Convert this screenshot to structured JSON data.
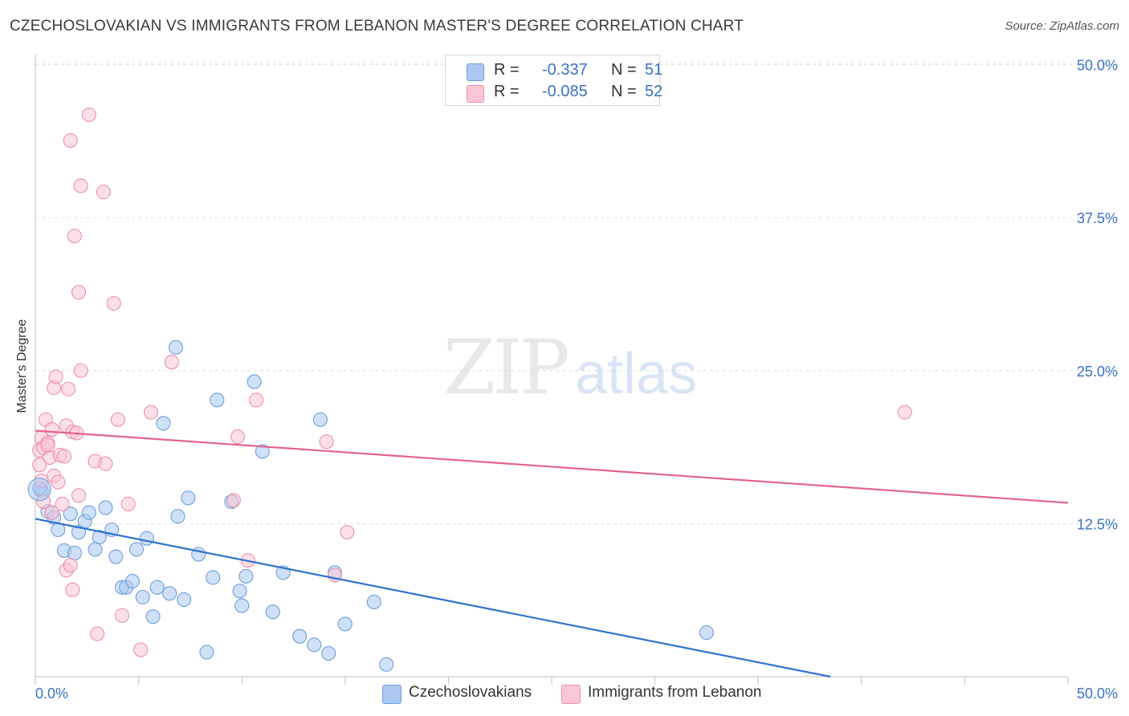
{
  "title": "CZECHOSLOVAKIAN VS IMMIGRANTS FROM LEBANON MASTER'S DEGREE CORRELATION CHART",
  "source": "Source: ZipAtlas.com",
  "watermark": {
    "zip": "ZIP",
    "atlas": "atlas"
  },
  "legend": {
    "r_label": "R =",
    "n_label": "N =",
    "rows": [
      {
        "r": "-0.337",
        "n": "51",
        "color": "#aac8f0",
        "stroke": "#6e9fdc"
      },
      {
        "r": "-0.085",
        "n": "52",
        "color": "#f9c6d6",
        "stroke": "#ec8fae"
      }
    ]
  },
  "bottom_legend": [
    {
      "label": "Czechoslovakians",
      "color": "#aac8f0",
      "stroke": "#6e9fdc"
    },
    {
      "label": "Immigrants from Lebanon",
      "color": "#f9c6d6",
      "stroke": "#ec8fae"
    }
  ],
  "chart_data": {
    "type": "scatter",
    "title": "CZECHOSLOVAKIAN VS IMMIGRANTS FROM LEBANON MASTER'S DEGREE CORRELATION CHART",
    "xlabel": "",
    "ylabel": "Master's Degree",
    "xlim": [
      0,
      50
    ],
    "ylim": [
      0,
      52
    ],
    "x_tick_labels": [
      "0.0%",
      "50.0%"
    ],
    "y_ticks": [
      12.5,
      25.0,
      37.5,
      50.0
    ],
    "y_tick_labels": [
      "12.5%",
      "25.0%",
      "37.5%",
      "50.0%"
    ],
    "grid": true,
    "series": [
      {
        "name": "Czechoslovakians",
        "color": "#6e9fdc",
        "fill": "#aac8f0",
        "line_color": "#2f72cf",
        "trend": {
          "x": [
            0,
            38.5
          ],
          "y": [
            12.9,
            0
          ]
        },
        "points": [
          [
            0.3,
            15.2
          ],
          [
            0.6,
            13.5
          ],
          [
            0.9,
            13.0
          ],
          [
            1.1,
            12.0
          ],
          [
            1.4,
            10.3
          ],
          [
            1.7,
            13.3
          ],
          [
            1.9,
            10.1
          ],
          [
            2.1,
            11.8
          ],
          [
            2.4,
            12.7
          ],
          [
            2.6,
            13.4
          ],
          [
            2.9,
            10.4
          ],
          [
            3.1,
            11.4
          ],
          [
            3.4,
            13.8
          ],
          [
            3.7,
            12.0
          ],
          [
            3.9,
            9.8
          ],
          [
            4.2,
            7.3
          ],
          [
            4.4,
            7.3
          ],
          [
            4.7,
            7.8
          ],
          [
            4.9,
            10.4
          ],
          [
            5.2,
            6.5
          ],
          [
            5.4,
            11.3
          ],
          [
            5.7,
            4.9
          ],
          [
            5.9,
            7.3
          ],
          [
            6.2,
            20.7
          ],
          [
            6.5,
            6.8
          ],
          [
            6.8,
            26.9
          ],
          [
            6.9,
            13.1
          ],
          [
            7.2,
            6.3
          ],
          [
            7.4,
            14.6
          ],
          [
            7.9,
            10.0
          ],
          [
            8.3,
            2.0
          ],
          [
            8.6,
            8.1
          ],
          [
            8.8,
            22.6
          ],
          [
            9.5,
            14.3
          ],
          [
            9.9,
            7.0
          ],
          [
            10.0,
            5.8
          ],
          [
            10.2,
            8.2
          ],
          [
            10.6,
            24.1
          ],
          [
            11.0,
            18.4
          ],
          [
            11.5,
            5.3
          ],
          [
            12.0,
            8.5
          ],
          [
            12.8,
            3.3
          ],
          [
            13.5,
            2.6
          ],
          [
            13.8,
            21.0
          ],
          [
            14.2,
            1.9
          ],
          [
            14.5,
            8.5
          ],
          [
            15.0,
            4.3
          ],
          [
            16.4,
            6.1
          ],
          [
            17.0,
            1.0
          ],
          [
            32.5,
            3.6
          ],
          [
            0.2,
            15.4
          ]
        ]
      },
      {
        "name": "Immigrants from Lebanon",
        "color": "#ec8fae",
        "fill": "#f9c6d6",
        "line_color": "#e3638f",
        "trend": {
          "x": [
            0,
            50
          ],
          "y": [
            20.1,
            14.2
          ]
        },
        "points": [
          [
            0.2,
            18.5
          ],
          [
            0.3,
            19.5
          ],
          [
            0.4,
            18.7
          ],
          [
            0.5,
            21.0
          ],
          [
            0.6,
            19.1
          ],
          [
            0.7,
            17.9
          ],
          [
            0.8,
            20.2
          ],
          [
            0.9,
            23.6
          ],
          [
            0.9,
            16.4
          ],
          [
            1.0,
            24.5
          ],
          [
            1.1,
            15.9
          ],
          [
            1.2,
            18.1
          ],
          [
            1.3,
            14.1
          ],
          [
            1.4,
            18.0
          ],
          [
            1.5,
            8.7
          ],
          [
            1.5,
            20.5
          ],
          [
            1.6,
            23.5
          ],
          [
            1.7,
            9.1
          ],
          [
            1.7,
            43.8
          ],
          [
            1.8,
            7.1
          ],
          [
            1.8,
            20.0
          ],
          [
            1.9,
            36.0
          ],
          [
            2.0,
            19.9
          ],
          [
            2.1,
            14.8
          ],
          [
            2.1,
            31.4
          ],
          [
            2.2,
            25.0
          ],
          [
            2.2,
            40.1
          ],
          [
            2.6,
            45.9
          ],
          [
            2.9,
            17.6
          ],
          [
            3.0,
            3.5
          ],
          [
            3.3,
            39.6
          ],
          [
            3.4,
            17.4
          ],
          [
            3.8,
            30.5
          ],
          [
            4.0,
            21.0
          ],
          [
            4.2,
            5.0
          ],
          [
            4.5,
            14.1
          ],
          [
            5.1,
            2.2
          ],
          [
            5.6,
            21.6
          ],
          [
            6.6,
            25.7
          ],
          [
            9.6,
            14.4
          ],
          [
            9.8,
            19.6
          ],
          [
            10.3,
            9.5
          ],
          [
            10.7,
            22.6
          ],
          [
            14.1,
            19.2
          ],
          [
            14.5,
            8.3
          ],
          [
            15.1,
            11.8
          ],
          [
            42.1,
            21.6
          ],
          [
            0.2,
            17.3
          ],
          [
            0.4,
            14.3
          ],
          [
            0.6,
            18.9
          ],
          [
            0.3,
            16.0
          ],
          [
            0.8,
            13.4
          ]
        ]
      }
    ]
  }
}
